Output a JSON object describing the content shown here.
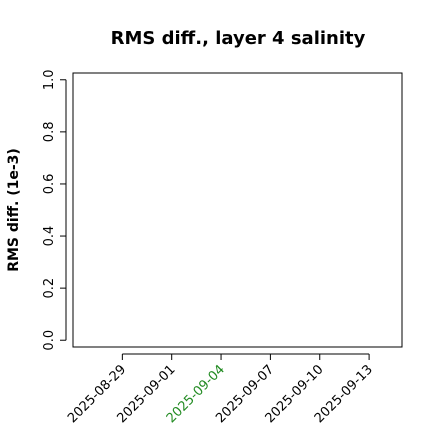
{
  "chart_data": {
    "type": "line",
    "title": "RMS diff., layer 4 salinity",
    "y_label": "RMS diff. (1e-3)",
    "series": [],
    "xlim": [
      "2025-08-26",
      "2025-09-15"
    ],
    "xticks": [
      "2025-08-29",
      "2025-09-01",
      "2025-09-04",
      "2025-09-07",
      "2025-09-10",
      "2025-09-13"
    ],
    "xtick_colors": [
      "#000000",
      "#000000",
      "#228b22",
      "#000000",
      "#000000",
      "#000000"
    ],
    "ylim": [
      -0.026,
      1.026
    ],
    "yticks": [
      {
        "value": 0,
        "label": "0.0"
      },
      {
        "value": 0.2,
        "label": "0.2"
      },
      {
        "value": 0.4,
        "label": "0.4"
      },
      {
        "value": 0.6,
        "label": "0.6"
      },
      {
        "value": 0.8,
        "label": "0.8"
      },
      {
        "value": 1,
        "label": "1.0"
      }
    ]
  }
}
